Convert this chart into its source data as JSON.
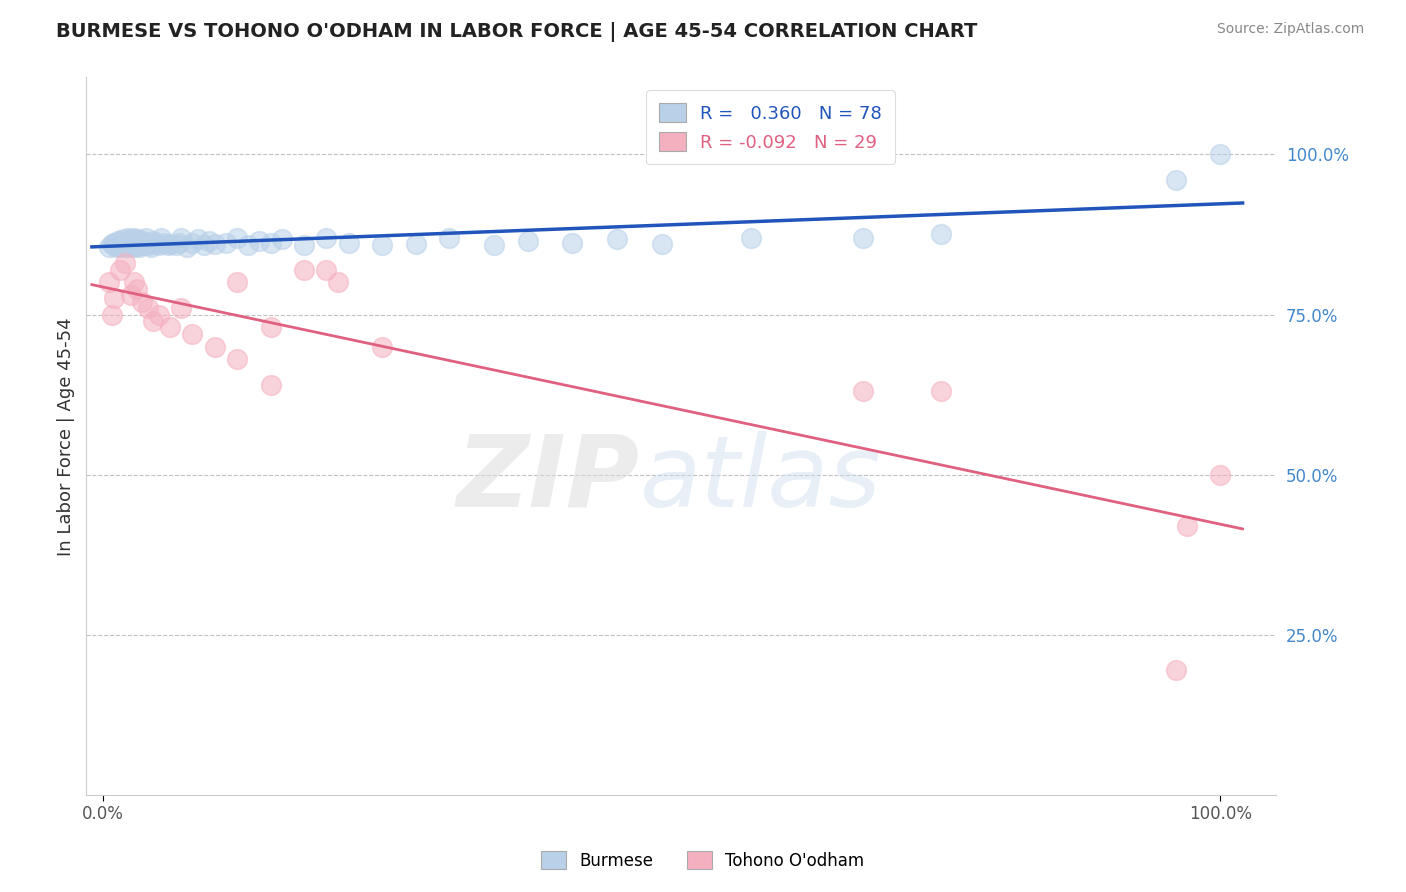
{
  "title": "BURMESE VS TOHONO O'ODHAM IN LABOR FORCE | AGE 45-54 CORRELATION CHART",
  "source": "Source: ZipAtlas.com",
  "ylabel": "In Labor Force | Age 45-54",
  "xlim": [
    0.0,
    1.0
  ],
  "ylim": [
    0.0,
    1.1
  ],
  "burmese_R": 0.36,
  "burmese_N": 78,
  "tohono_R": -0.092,
  "tohono_N": 29,
  "burmese_color": "#b8d0e8",
  "burmese_line_color": "#2255bb",
  "tohono_color": "#f5b0c0",
  "tohono_line_color": "#e06080",
  "ytick_labels": [
    "100.0%",
    "75.0%",
    "50.0%",
    "25.0%"
  ],
  "ytick_values": [
    1.0,
    0.75,
    0.5,
    0.25
  ],
  "xtick_labels": [
    "0.0%",
    "100.0%"
  ],
  "xtick_values": [
    0.0,
    1.0
  ],
  "burmese_x": [
    0.005,
    0.008,
    0.01,
    0.01,
    0.012,
    0.013,
    0.015,
    0.015,
    0.016,
    0.017,
    0.018,
    0.018,
    0.019,
    0.02,
    0.02,
    0.021,
    0.022,
    0.022,
    0.023,
    0.024,
    0.025,
    0.025,
    0.026,
    0.027,
    0.028,
    0.028,
    0.03,
    0.03,
    0.031,
    0.032,
    0.033,
    0.034,
    0.035,
    0.036,
    0.037,
    0.038,
    0.039,
    0.04,
    0.042,
    0.043,
    0.045,
    0.047,
    0.05,
    0.052,
    0.055,
    0.058,
    0.06,
    0.065,
    0.068,
    0.07,
    0.075,
    0.08,
    0.085,
    0.09,
    0.095,
    0.1,
    0.11,
    0.12,
    0.13,
    0.14,
    0.15,
    0.16,
    0.18,
    0.2,
    0.22,
    0.25,
    0.28,
    0.31,
    0.35,
    0.38,
    0.42,
    0.46,
    0.5,
    0.58,
    0.68,
    0.75,
    0.96,
    1.0
  ],
  "burmese_y": [
    0.855,
    0.86,
    0.858,
    0.862,
    0.856,
    0.864,
    0.855,
    0.86,
    0.865,
    0.858,
    0.862,
    0.868,
    0.86,
    0.855,
    0.862,
    0.858,
    0.865,
    0.87,
    0.862,
    0.855,
    0.858,
    0.862,
    0.868,
    0.86,
    0.855,
    0.87,
    0.858,
    0.862,
    0.868,
    0.855,
    0.86,
    0.858,
    0.865,
    0.862,
    0.858,
    0.87,
    0.862,
    0.858,
    0.86,
    0.855,
    0.865,
    0.86,
    0.858,
    0.87,
    0.862,
    0.858,
    0.86,
    0.858,
    0.862,
    0.87,
    0.855,
    0.862,
    0.868,
    0.858,
    0.865,
    0.86,
    0.862,
    0.87,
    0.858,
    0.865,
    0.862,
    0.868,
    0.858,
    0.87,
    0.862,
    0.858,
    0.86,
    0.87,
    0.858,
    0.865,
    0.862,
    0.868,
    0.86,
    0.87,
    0.87,
    0.876,
    0.96,
    1.0
  ],
  "tohono_x": [
    0.005,
    0.008,
    0.01,
    0.015,
    0.02,
    0.025,
    0.028,
    0.03,
    0.035,
    0.04,
    0.045,
    0.05,
    0.06,
    0.07,
    0.08,
    0.1,
    0.12,
    0.15,
    0.18,
    0.21,
    0.12,
    0.15,
    0.2,
    0.25,
    0.68,
    0.75,
    0.96,
    0.97,
    1.0
  ],
  "tohono_y": [
    0.8,
    0.75,
    0.775,
    0.82,
    0.83,
    0.78,
    0.8,
    0.79,
    0.77,
    0.76,
    0.74,
    0.75,
    0.73,
    0.76,
    0.72,
    0.7,
    0.8,
    0.73,
    0.82,
    0.8,
    0.68,
    0.64,
    0.82,
    0.7,
    0.63,
    0.63,
    0.195,
    0.42,
    0.5
  ]
}
